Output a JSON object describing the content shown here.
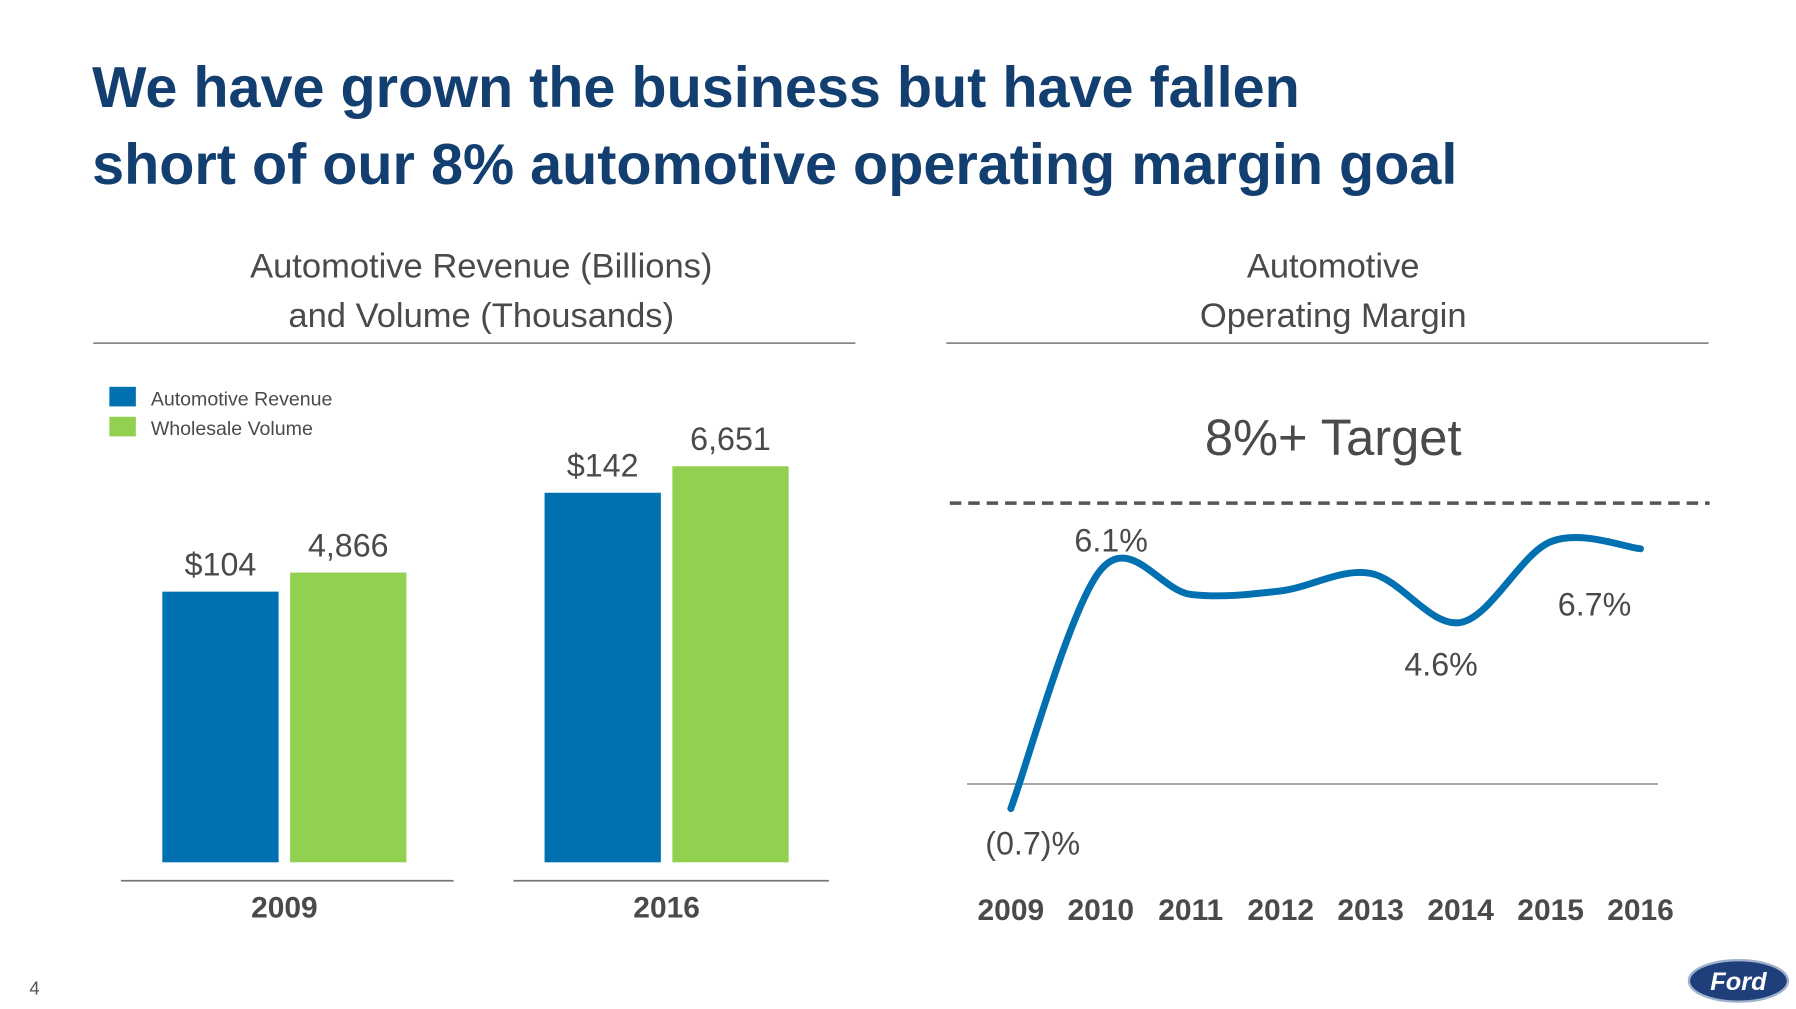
{
  "title": [
    "We have grown the business but have fallen",
    "short of our 8% automotive operating margin goal"
  ],
  "page_number": "4",
  "logo": "Ford",
  "chart_data": [
    {
      "type": "bar",
      "title": [
        "Automotive Revenue (Billions)",
        "and Volume (Thousands)"
      ],
      "categories": [
        "2009",
        "2016"
      ],
      "series": [
        {
          "name": "Automotive Revenue",
          "color": "#0070b0",
          "values": [
            104,
            142
          ],
          "value_labels": [
            "$104",
            "$142"
          ]
        },
        {
          "name": "Wholesale Volume",
          "color": "#92d050",
          "values": [
            4866,
            6651
          ],
          "value_labels": [
            "4,866",
            "6,651"
          ]
        }
      ]
    },
    {
      "type": "line",
      "title": [
        "Automotive",
        "Operating Margin"
      ],
      "x": [
        "2009",
        "2010",
        "2011",
        "2012",
        "2013",
        "2014",
        "2015",
        "2016"
      ],
      "series": [
        {
          "name": "Automotive Operating Margin",
          "color": "#0070b0",
          "values": [
            -0.7,
            6.1,
            5.4,
            5.5,
            6.0,
            4.6,
            6.9,
            6.7
          ],
          "value_labels": [
            "(0.7)%",
            "6.1%",
            null,
            null,
            null,
            "4.6%",
            null,
            "6.7%"
          ]
        }
      ],
      "ylim": [
        -1.3,
        9.2
      ],
      "target": {
        "value": 8,
        "label": "8%+ Target"
      }
    }
  ]
}
